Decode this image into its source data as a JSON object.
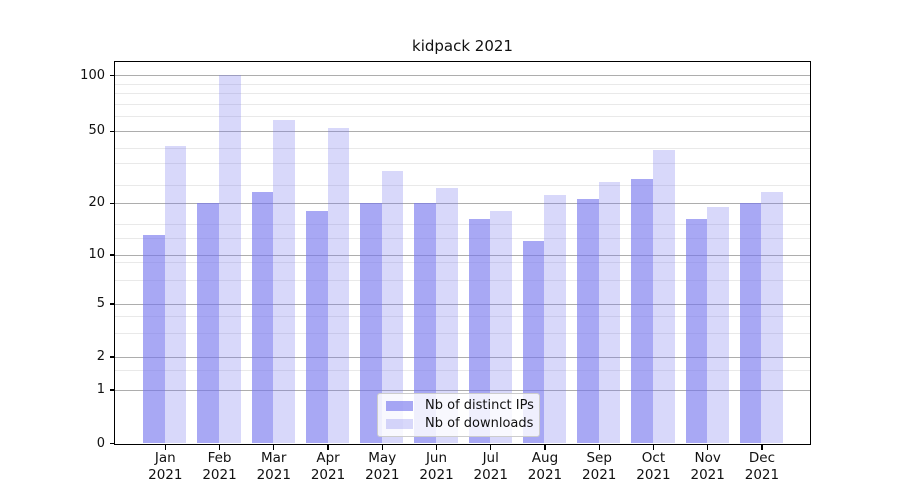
{
  "figure": {
    "title": "kidpack 2021"
  },
  "legend": {
    "items": [
      {
        "label": "Nb of distinct IPs"
      },
      {
        "label": "Nb of downloads"
      }
    ]
  },
  "chart_data": {
    "type": "bar",
    "title": "kidpack 2021",
    "categories": [
      "Jan 2021",
      "Feb 2021",
      "Mar 2021",
      "Apr 2021",
      "May 2021",
      "Jun 2021",
      "Jul 2021",
      "Aug 2021",
      "Sep 2021",
      "Oct 2021",
      "Nov 2021",
      "Dec 2021"
    ],
    "x_tick_labels": {
      "months": [
        "Jan",
        "Feb",
        "Mar",
        "Apr",
        "May",
        "Jun",
        "Jul",
        "Aug",
        "Sep",
        "Oct",
        "Nov",
        "Dec"
      ],
      "year": "2021"
    },
    "series": [
      {
        "name": "Nb of distinct IPs",
        "color": "rgba(115,115,238,0.62)",
        "values": [
          13,
          20,
          23,
          18,
          20,
          20,
          16,
          12,
          21,
          27,
          16,
          20
        ]
      },
      {
        "name": "Nb of downloads",
        "color": "rgba(115,115,238,0.28)",
        "values": [
          41,
          100,
          57,
          52,
          30,
          24,
          18,
          22,
          26,
          39,
          19,
          23
        ]
      }
    ],
    "yscale": "symlog",
    "yticks": [
      0,
      1,
      2,
      5,
      10,
      20,
      50,
      100
    ],
    "ylim": [
      0,
      115
    ],
    "xlabel": "",
    "ylabel": "",
    "grid": "horizontal major + minor",
    "legend_position": "lower center (inside axes)"
  }
}
